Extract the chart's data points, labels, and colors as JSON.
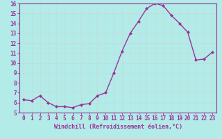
{
  "x": [
    0,
    1,
    2,
    3,
    4,
    5,
    6,
    7,
    8,
    9,
    10,
    11,
    12,
    13,
    14,
    15,
    16,
    17,
    18,
    19,
    20,
    21,
    22,
    23
  ],
  "y": [
    6.3,
    6.2,
    6.7,
    6.0,
    5.6,
    5.6,
    5.5,
    5.8,
    5.9,
    6.7,
    7.0,
    9.0,
    11.2,
    13.0,
    14.2,
    15.5,
    16.0,
    15.8,
    14.8,
    14.0,
    13.1,
    10.3,
    10.4,
    11.1
  ],
  "line_color": "#993399",
  "marker": "D",
  "marker_size": 2.0,
  "bg_color": "#b2ebe8",
  "grid_color": "#aaddda",
  "ylim": [
    5,
    16
  ],
  "yticks": [
    5,
    6,
    7,
    8,
    9,
    10,
    11,
    12,
    13,
    14,
    15,
    16
  ],
  "xlim": [
    -0.5,
    23.5
  ],
  "xticks": [
    0,
    1,
    2,
    3,
    4,
    5,
    6,
    7,
    8,
    9,
    10,
    11,
    12,
    13,
    14,
    15,
    16,
    17,
    18,
    19,
    20,
    21,
    22,
    23
  ],
  "xlabel": "Windchill (Refroidissement éolien,°C)",
  "tick_fontsize": 5.5,
  "xlabel_fontsize": 6.0,
  "line_width": 1.0
}
